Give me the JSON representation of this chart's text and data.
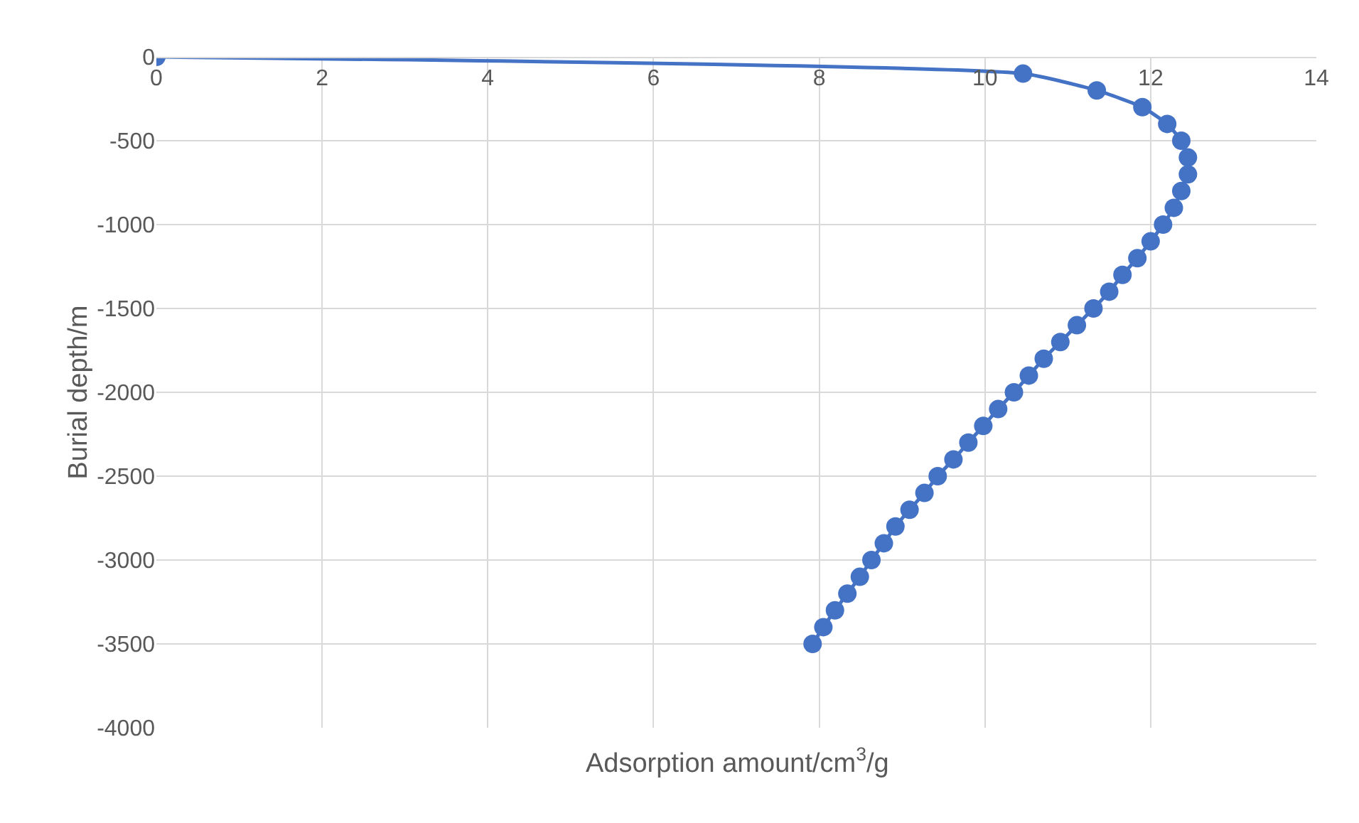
{
  "chart_data": {
    "type": "line",
    "xlabel": "Adsorption amount/cm$^{3}$/g",
    "ylabel": "Burial depth/m",
    "x": [
      0,
      10.46,
      11.35,
      11.9,
      12.2,
      12.37,
      12.45,
      12.45,
      12.37,
      12.28,
      12.15,
      12.0,
      11.84,
      11.66,
      11.5,
      11.31,
      11.11,
      10.91,
      10.71,
      10.53,
      10.35,
      10.16,
      9.98,
      9.8,
      9.62,
      9.43,
      9.27,
      9.09,
      8.92,
      8.78,
      8.63,
      8.49,
      8.34,
      8.19,
      8.05,
      7.92
    ],
    "series": [
      {
        "color": "#4472c4",
        "values": [
          0,
          -100,
          -200,
          -300,
          -400,
          -500,
          -600,
          -700,
          -800,
          -900,
          -1000,
          -1100,
          -1200,
          -1300,
          -1400,
          -1500,
          -1600,
          -1700,
          -1800,
          -1900,
          -2000,
          -2100,
          -2200,
          -2300,
          -2400,
          -2500,
          -2600,
          -2700,
          -2800,
          -2900,
          -3000,
          -3100,
          -3200,
          -3300,
          -3400,
          -3500
        ]
      }
    ],
    "xlim": [
      0,
      14
    ],
    "xticks": [
      0,
      2,
      4,
      6,
      8,
      10,
      12,
      14
    ],
    "ylim": [
      -4000,
      0
    ],
    "yticks": [
      -4000,
      -3500,
      -3000,
      -2500,
      -2000,
      -1500,
      -1000,
      -500,
      0
    ],
    "grid": true,
    "marker": "circle",
    "line_style": "solid"
  }
}
